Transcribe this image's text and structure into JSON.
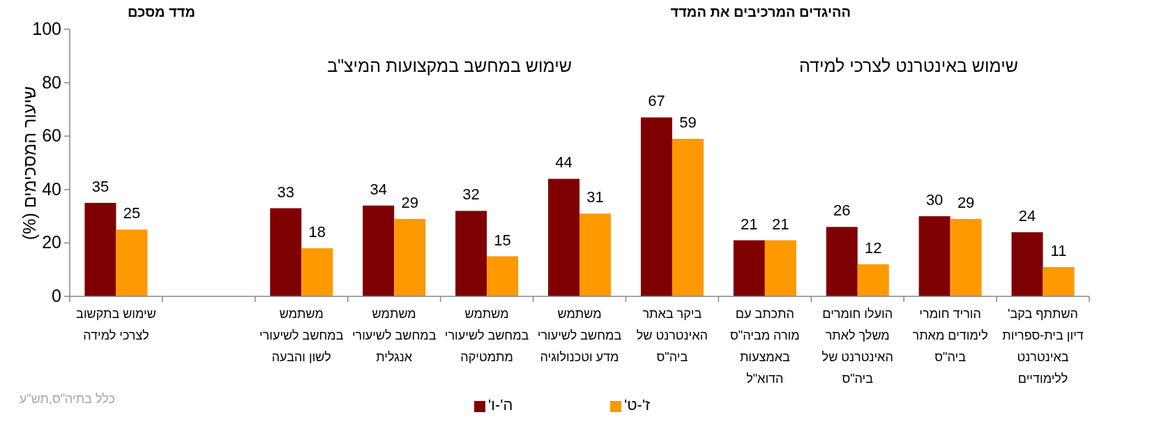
{
  "chart_data": {
    "type": "bar",
    "title": "ההיגדים המרכיבים את המדד",
    "subtitle": "מדד מסכם",
    "ylabel": "שיעור המסכימים (%)",
    "categories": [
      "שימוש בתקשוב לצרכי למידה",
      null,
      "משתמש במחשב לשיעורי לשון והבעה",
      "משתמש במחשב לשיעורי אנגלית",
      "משתמש במחשב לשיעורי מתמטיקה",
      "משתמש במחשב לשיעורי מדע וטכנולוגיה",
      "ביקר באתר האינטרנט של ביה\"ס",
      "התכתב עם מורה מביה\"ס באמצעות הדוא\"ל",
      "הועלו חומרים משלך לאתר האינטרנט של ביה\"ס",
      "הוריד חומרי לימודים מאתר ביה\"ס",
      "השתתף בקב' דיון בית-ספריות באינטרנט ללימודיים"
    ],
    "series": [
      {
        "name": "ה'-ו'",
        "color": "#7f0000",
        "values": [
          35,
          null,
          33,
          34,
          32,
          44,
          67,
          21,
          26,
          30,
          24
        ]
      },
      {
        "name": "ז'-ט'",
        "color": "#ff9900",
        "values": [
          25,
          null,
          18,
          29,
          15,
          31,
          59,
          21,
          12,
          29,
          11
        ]
      }
    ],
    "ylim": [
      0,
      100
    ],
    "yticks": [
      0,
      20,
      40,
      60,
      80,
      100
    ],
    "data_labels": true,
    "legend": "bottom",
    "annotations": [
      "שימוש במחשב במקצועות המיצ\"ב",
      "שימוש באינטרנט לצרכי למידה",
      "כלל בתיה\"ס,תש\"ע"
    ]
  }
}
